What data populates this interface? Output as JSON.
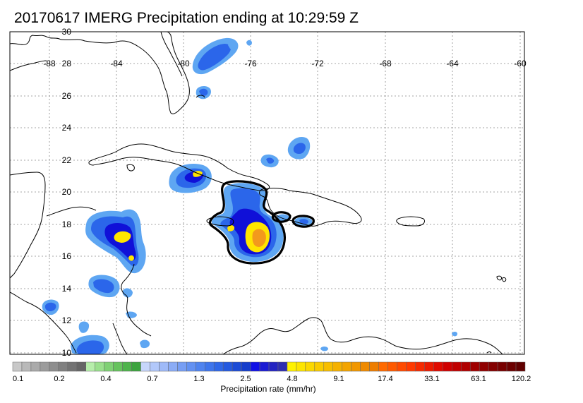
{
  "title": "20170617 IMERG Precipitation ending at 10:29:59 Z",
  "map": {
    "lon_labels": [
      "-88",
      "-84",
      "-80",
      "-76",
      "-72",
      "-68",
      "-64",
      "-60"
    ],
    "lat_labels": [
      "30",
      "28",
      "26",
      "24",
      "22",
      "20",
      "18",
      "16",
      "14",
      "12",
      "10"
    ],
    "colors": {
      "light_blue": "#5ea6f2",
      "mid_blue": "#2b66ea",
      "deep_blue": "#1010d8",
      "yellow": "#ffe500",
      "orange": "#f39a1c",
      "contour": "#000000",
      "coast": "#000000"
    }
  },
  "colorbar": {
    "title": "Precipitation rate (mm/hr)",
    "tick_labels": [
      "0.1",
      "0.2",
      "0.4",
      "0.7",
      "1.3",
      "2.5",
      "4.8",
      "9.1",
      "17.4",
      "33.1",
      "63.1",
      "120.2"
    ],
    "colors": [
      "#c8c8c8",
      "#b9b9b9",
      "#aaaaaa",
      "#9c9c9c",
      "#8e8e8e",
      "#808080",
      "#737373",
      "#666666",
      "#b6eeaa",
      "#9ae08d",
      "#7fd174",
      "#66c35d",
      "#4eb44b",
      "#3ca43e",
      "#c7d6fb",
      "#b2c8fa",
      "#9fbaf8",
      "#8bacf6",
      "#779ef4",
      "#6391f2",
      "#4f83ef",
      "#3e75ec",
      "#2f67e8",
      "#2459e0",
      "#1c4bd6",
      "#153dcc",
      "#1010e6",
      "#1a1ad4",
      "#2424c2",
      "#2e2eb0",
      "#fff200",
      "#fde500",
      "#fbd800",
      "#f9cb00",
      "#f7be00",
      "#f5b100",
      "#f3a400",
      "#f19700",
      "#ef8a00",
      "#ed7d00",
      "#ff6a00",
      "#ff5a00",
      "#ff4a00",
      "#ff3a00",
      "#f52a00",
      "#eb1a00",
      "#e00a00",
      "#d00000",
      "#c00000",
      "#b00000",
      "#a00000",
      "#900000",
      "#840000",
      "#780000",
      "#6c0000",
      "#600000"
    ]
  }
}
